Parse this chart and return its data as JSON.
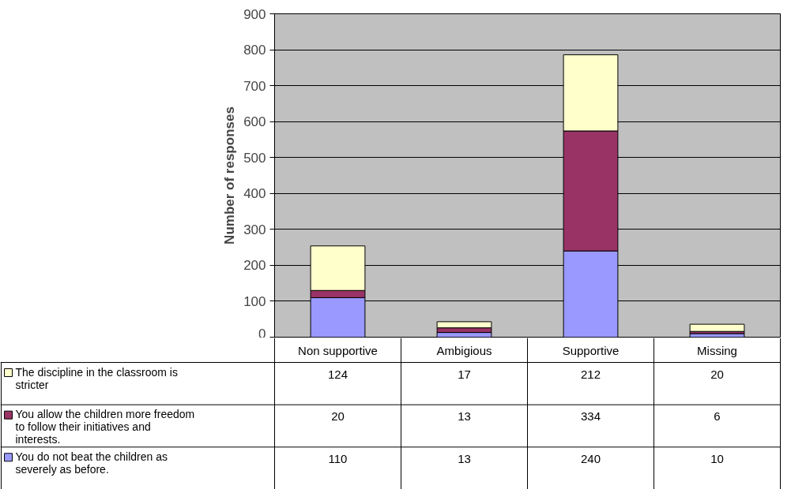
{
  "chart_data": {
    "type": "bar",
    "stacked": true,
    "ylabel": "Number of responses",
    "categories": [
      "Non supportive",
      "Ambigious",
      "Supportive",
      "Missing"
    ],
    "series": [
      {
        "name": "You do not beat the children as severely as before.",
        "color": "#9999ff",
        "values": [
          110,
          13,
          240,
          10
        ]
      },
      {
        "name": "You allow the children more freedom to follow their initiatives and interests.",
        "color": "#993366",
        "values": [
          20,
          13,
          334,
          6
        ]
      },
      {
        "name": "The discipline in the classroom is stricter",
        "color": "#ffffcc",
        "values": [
          124,
          17,
          212,
          20
        ]
      }
    ],
    "ylim": [
      0,
      900
    ],
    "yticks": [
      0,
      100,
      200,
      300,
      400,
      500,
      600,
      700,
      800,
      900
    ],
    "grid": "y",
    "data_labels": true,
    "legend": "bottom"
  }
}
